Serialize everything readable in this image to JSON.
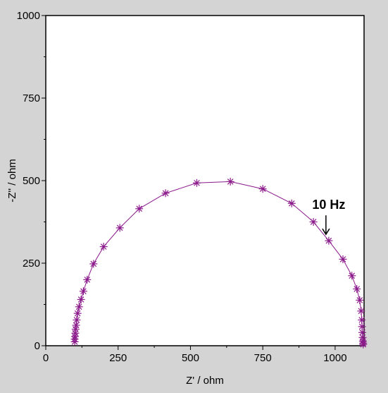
{
  "chart_data": {
    "type": "scatter",
    "title": "",
    "xlabel": "Z' / ohm",
    "ylabel": "-Z'' / ohm",
    "xlim": [
      0,
      1100
    ],
    "ylim": [
      0,
      1000
    ],
    "xticks": [
      0,
      250,
      500,
      750,
      1000
    ],
    "yticks": [
      0,
      250,
      500,
      750,
      1000
    ],
    "grid": false,
    "legend": "none",
    "series": [
      {
        "color": "#8b1a8b",
        "marker": "asterisk",
        "line": true,
        "points": [
          [
            100,
            12
          ],
          [
            100,
            20
          ],
          [
            101,
            28
          ],
          [
            102,
            38
          ],
          [
            103,
            50
          ],
          [
            105,
            62
          ],
          [
            107,
            78
          ],
          [
            110,
            98
          ],
          [
            115,
            118
          ],
          [
            122,
            140
          ],
          [
            130,
            165
          ],
          [
            143,
            200
          ],
          [
            165,
            248
          ],
          [
            200,
            300
          ],
          [
            256,
            357
          ],
          [
            323,
            415
          ],
          [
            414,
            462
          ],
          [
            522,
            493
          ],
          [
            638,
            497
          ],
          [
            750,
            475
          ],
          [
            850,
            431
          ],
          [
            925,
            375
          ],
          [
            978,
            318
          ],
          [
            1027,
            262
          ],
          [
            1058,
            212
          ],
          [
            1075,
            172
          ],
          [
            1085,
            138
          ],
          [
            1090,
            105
          ],
          [
            1092,
            78
          ],
          [
            1093,
            58
          ],
          [
            1094,
            40
          ],
          [
            1095,
            25
          ],
          [
            1096,
            14
          ],
          [
            1097,
            8
          ],
          [
            1097,
            4
          ]
        ]
      }
    ],
    "annotations": [
      {
        "text": "10 Hz",
        "x": 978,
        "y": 318,
        "arrow": true
      }
    ]
  }
}
